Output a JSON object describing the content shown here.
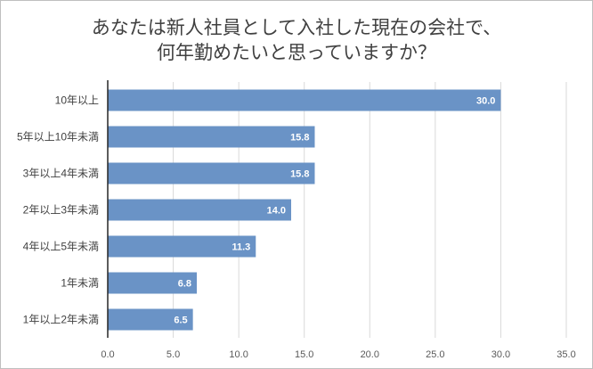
{
  "chart_data": {
    "type": "bar",
    "orientation": "horizontal",
    "title_lines": [
      "あなたは新人社員として入社した現在の会社で、",
      "何年勤めたいと思っていますか？"
    ],
    "categories": [
      "10年以上",
      "5年以上10年未満",
      "3年以上4年未満",
      "2年以上3年未満",
      "4年以上5年未満",
      "1年未満",
      "1年以上2年未満"
    ],
    "values": [
      30.0,
      15.8,
      15.8,
      14.0,
      11.3,
      6.8,
      6.5
    ],
    "data_labels": [
      "30.0",
      "15.8",
      "15.8",
      "14.0",
      "11.3",
      "6.8",
      "6.5"
    ],
    "xlim": [
      0,
      35
    ],
    "xticks": [
      "0.0",
      "5.0",
      "10.0",
      "15.0",
      "20.0",
      "25.0",
      "30.0",
      "35.0"
    ],
    "grid": true,
    "bar_color": "#6a93c6",
    "xlabel": "",
    "ylabel": ""
  }
}
